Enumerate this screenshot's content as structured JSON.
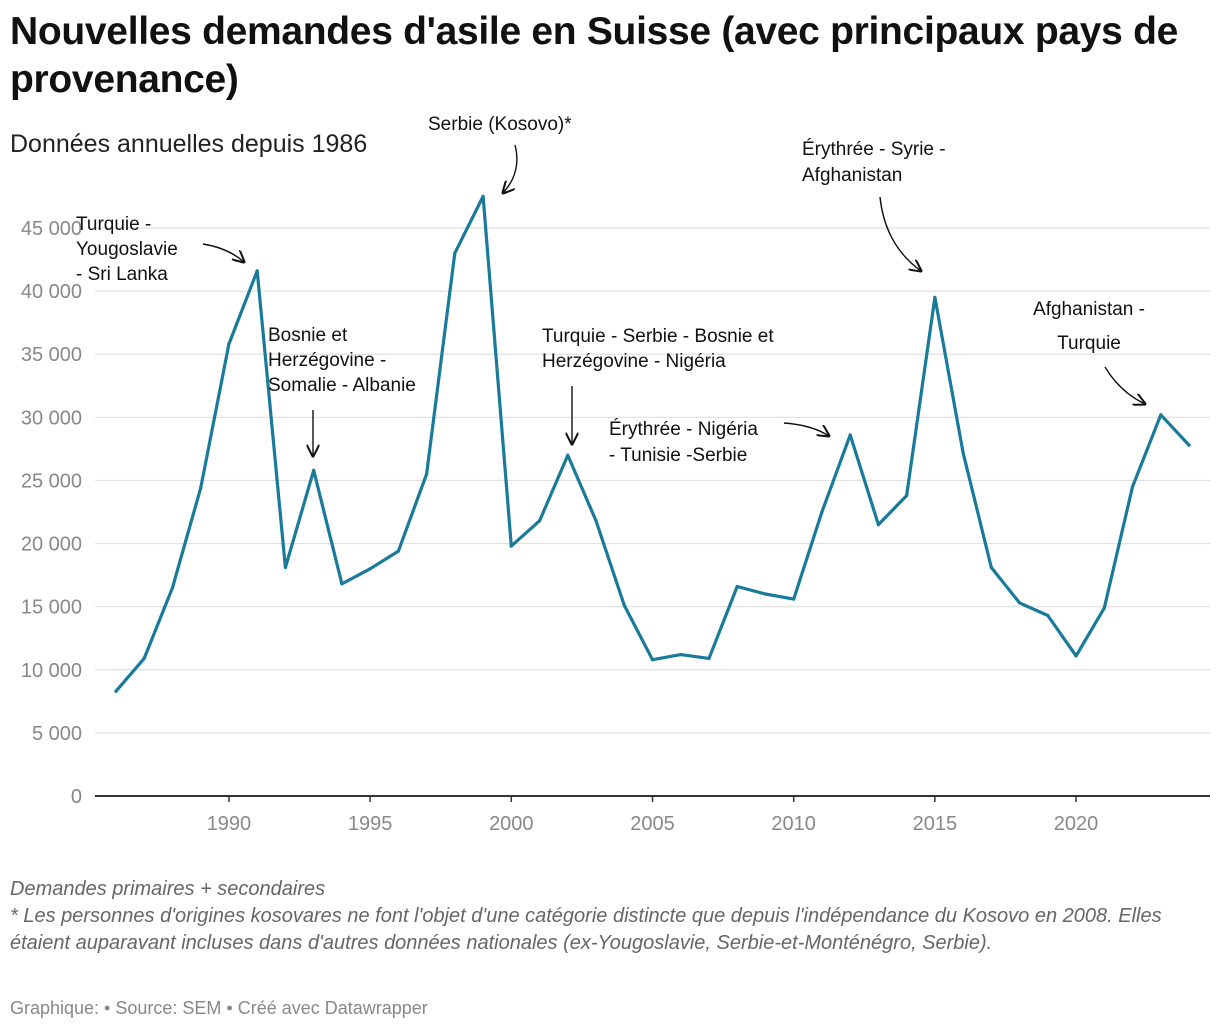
{
  "title": "Nouvelles demandes d'asile en Suisse (avec principaux pays de provenance)",
  "subtitle": "Données annuelles depuis 1986",
  "notes": [
    "Demandes primaires + secondaires",
    "* Les personnes d'origines kosovares ne font l'objet d'une catégorie distincte que depuis l'indépendance du Kosovo en 2008. Elles étaient auparavant incluses dans d'autres données nationales (ex-Yougoslavie, Serbie-et-Monténégro, Serbie)."
  ],
  "footer": "Graphique:  • Source: SEM • Créé avec Datawrapper",
  "colors": {
    "line": "#1a7a99",
    "grid": "#e0e0e0",
    "axis": "#333333",
    "tick": "#888888"
  },
  "chart_data": {
    "type": "line",
    "title": "Nouvelles demandes d'asile en Suisse (avec principaux pays de provenance)",
    "xlabel": "",
    "ylabel": "",
    "xlim": [
      1986,
      2024
    ],
    "ylim": [
      0,
      47500
    ],
    "x_ticks": [
      1990,
      1995,
      2000,
      2005,
      2010,
      2015,
      2020
    ],
    "y_ticks": [
      0,
      5000,
      10000,
      15000,
      20000,
      25000,
      30000,
      35000,
      40000,
      45000
    ],
    "y_tick_labels": [
      "0",
      "5 000",
      "10 000",
      "15 000",
      "20 000",
      "25 000",
      "30 000",
      "35 000",
      "40 000",
      "45 000"
    ],
    "series": [
      {
        "name": "Nouvelles demandes d'asile",
        "x": [
          1986,
          1987,
          1988,
          1989,
          1990,
          1991,
          1992,
          1993,
          1994,
          1995,
          1996,
          1997,
          1998,
          1999,
          2000,
          2001,
          2002,
          2003,
          2004,
          2005,
          2006,
          2007,
          2008,
          2009,
          2010,
          2011,
          2012,
          2013,
          2014,
          2015,
          2016,
          2017,
          2018,
          2019,
          2020,
          2021,
          2022,
          2023,
          2024
        ],
        "values": [
          8300,
          10900,
          16500,
          24400,
          35800,
          41600,
          18100,
          25800,
          16800,
          18000,
          19400,
          25500,
          43000,
          47500,
          19800,
          21800,
          27000,
          21800,
          15100,
          10800,
          11200,
          10900,
          16600,
          16000,
          15600,
          22500,
          28600,
          21500,
          23800,
          39500,
          27200,
          18100,
          15300,
          14300,
          11100,
          14900,
          24500,
          30200,
          27800
        ]
      }
    ],
    "annotations": [
      {
        "id": "a1991",
        "lines": [
          "Turquie -",
          "Yougoslavie",
          "- Sri Lanka"
        ],
        "year": 1991
      },
      {
        "id": "a1993",
        "lines": [
          "Bosnie et",
          "Herzégovine -",
          "Somalie - Albanie"
        ],
        "year": 1993
      },
      {
        "id": "a1999",
        "lines": [
          "Serbie (Kosovo)*"
        ],
        "year": 1999
      },
      {
        "id": "a2002",
        "lines": [
          "Turquie - Serbie - Bosnie et",
          "Herzégovine - Nigéria"
        ],
        "year": 2002
      },
      {
        "id": "a2012",
        "lines": [
          "Érythrée - Nigéria",
          "- Tunisie -Serbie"
        ],
        "year": 2012
      },
      {
        "id": "a2015",
        "lines": [
          "Érythrée - Syrie -",
          "Afghanistan"
        ],
        "year": 2015
      },
      {
        "id": "a2023",
        "lines": [
          "Afghanistan -",
          "Turquie"
        ],
        "year": 2023
      }
    ]
  }
}
